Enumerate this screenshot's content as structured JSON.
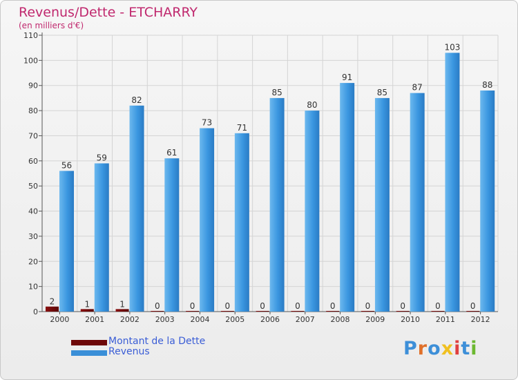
{
  "chart_data": {
    "type": "bar",
    "title": "Revenus/Dette - ETCHARRY",
    "subtitle": "(en milliers d'€)",
    "categories": [
      "2000",
      "2001",
      "2002",
      "2003",
      "2004",
      "2005",
      "2006",
      "2007",
      "2008",
      "2009",
      "2010",
      "2011",
      "2012"
    ],
    "series": [
      {
        "name": "Montant de la Dette",
        "color": "#7a0a0a",
        "values": [
          2,
          1,
          1,
          0,
          0,
          0,
          0,
          0,
          0,
          0,
          0,
          0,
          0
        ]
      },
      {
        "name": "Revenus",
        "color": "#3a8fd8",
        "values": [
          56,
          59,
          82,
          61,
          73,
          71,
          85,
          80,
          91,
          85,
          87,
          103,
          88
        ]
      }
    ],
    "ylim": [
      0,
      110
    ],
    "yticks": [
      0,
      10,
      20,
      30,
      40,
      50,
      60,
      70,
      80,
      90,
      100,
      110
    ],
    "grid": true,
    "legend_position": "bottom-left"
  },
  "legend": {
    "items": [
      {
        "label": "Montant de la Dette",
        "color": "#7a0a0a"
      },
      {
        "label": "Revenus",
        "color": "#3a8fd8"
      }
    ]
  },
  "logo": {
    "text": "Proxiti"
  },
  "colors": {
    "title": "#c0286e",
    "legend_text": "#3a5dd6",
    "grid": "#d4d4d4"
  }
}
